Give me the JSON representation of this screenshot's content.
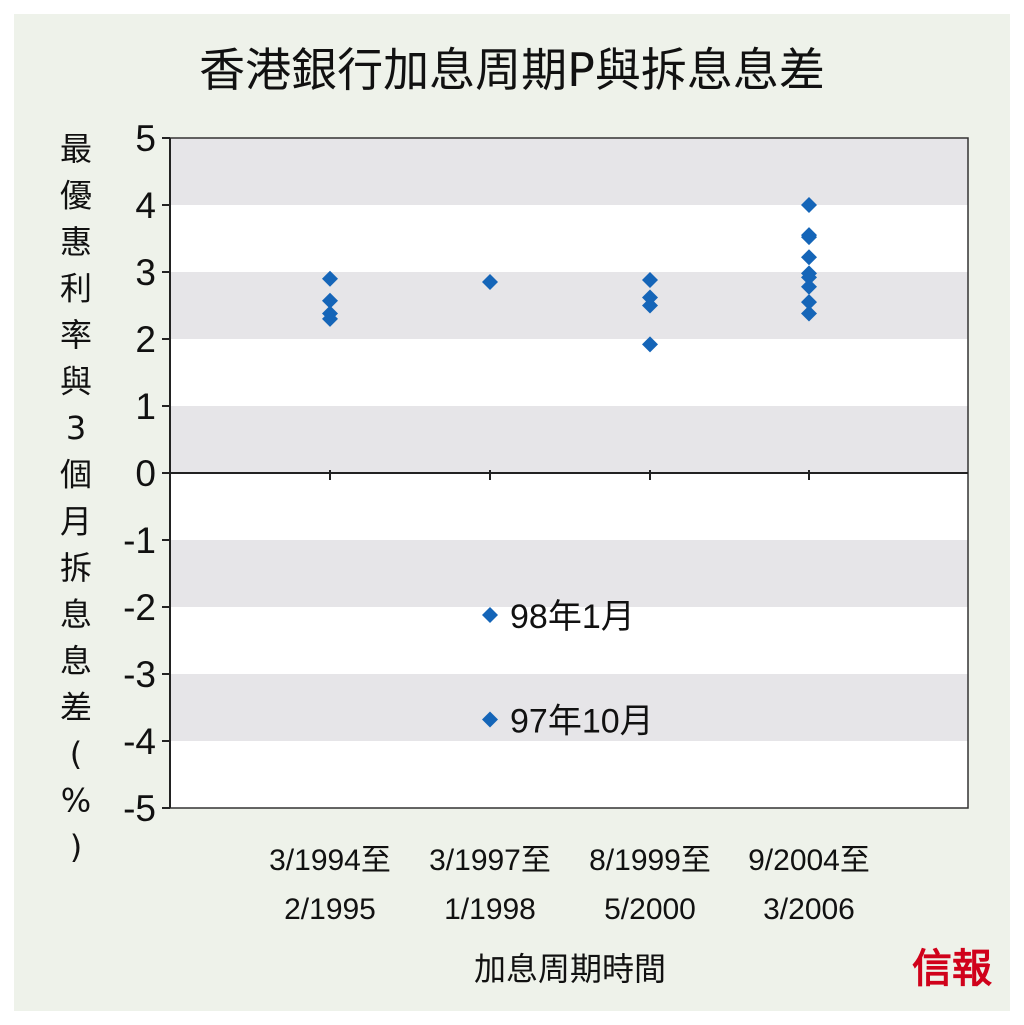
{
  "chart_data": {
    "type": "scatter",
    "title": "香港銀行加息周期P與拆息息差",
    "ylabel": "最優惠利率與3個月拆息息差(%)",
    "xlabel": "加息周期時間",
    "ylim": [
      -5,
      5
    ],
    "yticks": [
      "5",
      "4",
      "3",
      "2",
      "1",
      "0",
      "-1",
      "-2",
      "-3",
      "-4",
      "-5"
    ],
    "grid": "alternating horizontal bands",
    "categories": [
      {
        "line1": "3/1994至",
        "line2": "2/1995"
      },
      {
        "line1": "3/1997至",
        "line2": "1/1998"
      },
      {
        "line1": "8/1999至",
        "line2": "5/2000"
      },
      {
        "line1": "9/2004至",
        "line2": "3/2006"
      }
    ],
    "series": [
      {
        "category": 0,
        "values": [
          2.9,
          2.57,
          2.38,
          2.3
        ]
      },
      {
        "category": 1,
        "values": [
          2.85,
          -2.12,
          -3.68
        ]
      },
      {
        "category": 2,
        "values": [
          2.88,
          2.62,
          2.5,
          1.92
        ]
      },
      {
        "category": 3,
        "values": [
          4.0,
          3.55,
          3.52,
          3.22,
          2.98,
          2.92,
          2.78,
          2.55,
          2.38
        ]
      }
    ],
    "annotations": [
      {
        "category": 1,
        "value": -2.12,
        "text": "98年1月"
      },
      {
        "category": 1,
        "value": -3.68,
        "text": "97年10月"
      }
    ],
    "colors": {
      "marker": "#1565b8",
      "band": "#e6e5e8",
      "background": "#eef2ea"
    }
  },
  "logo": "信報"
}
